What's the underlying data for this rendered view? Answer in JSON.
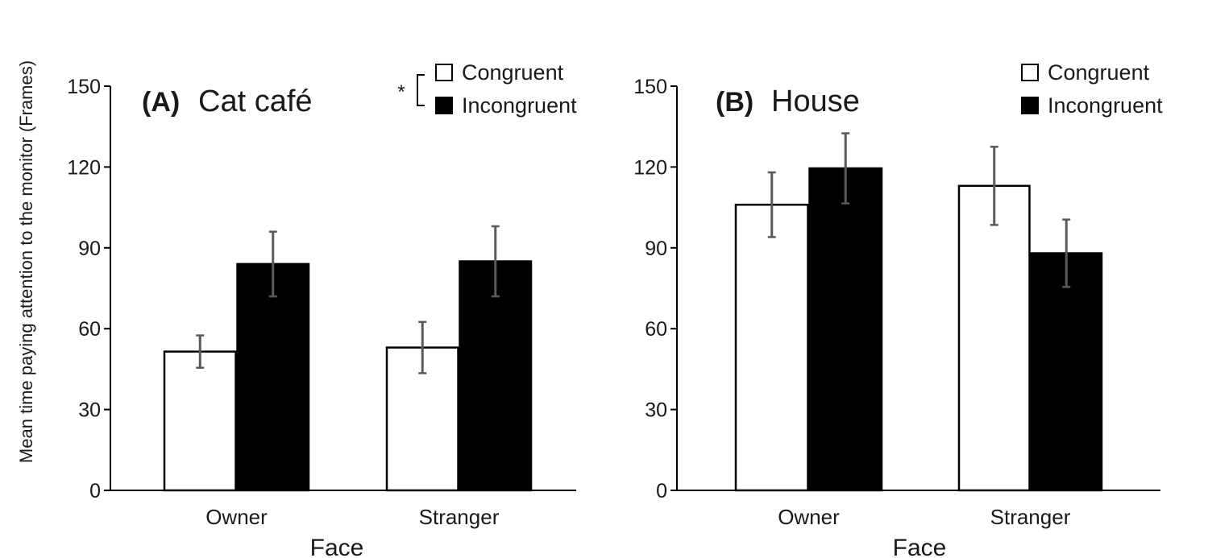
{
  "figure": {
    "ylabel": "Mean time paying attention to the monitor (Frames)"
  },
  "chart_data": [
    {
      "type": "bar",
      "panel_letter": "(A)",
      "panel_name": "Cat café",
      "xlabel": "Face",
      "categories": [
        "Owner",
        "Stranger"
      ],
      "ylim": [
        0,
        150
      ],
      "yticks": [
        0,
        30,
        60,
        90,
        120,
        150
      ],
      "legend_position": "top-right",
      "series": [
        {
          "name": "Congruent",
          "values": [
            51.5,
            53.0
          ],
          "errors": [
            6.0,
            9.5
          ],
          "color": "#ffffff"
        },
        {
          "name": "Incongruent",
          "values": [
            84.0,
            85.0
          ],
          "errors": [
            12.0,
            13.0
          ],
          "color": "#000000"
        }
      ],
      "annotation": "*"
    },
    {
      "type": "bar",
      "panel_letter": "(B)",
      "panel_name": "House",
      "xlabel": "Face",
      "categories": [
        "Owner",
        "Stranger"
      ],
      "ylim": [
        0,
        150
      ],
      "yticks": [
        0,
        30,
        60,
        90,
        120,
        150
      ],
      "legend_position": "top-right",
      "series": [
        {
          "name": "Congruent",
          "values": [
            106.0,
            113.0
          ],
          "errors": [
            12.0,
            14.5
          ],
          "color": "#ffffff"
        },
        {
          "name": "Incongruent",
          "values": [
            119.5,
            88.0
          ],
          "errors": [
            13.0,
            12.5
          ],
          "color": "#000000"
        }
      ]
    }
  ]
}
